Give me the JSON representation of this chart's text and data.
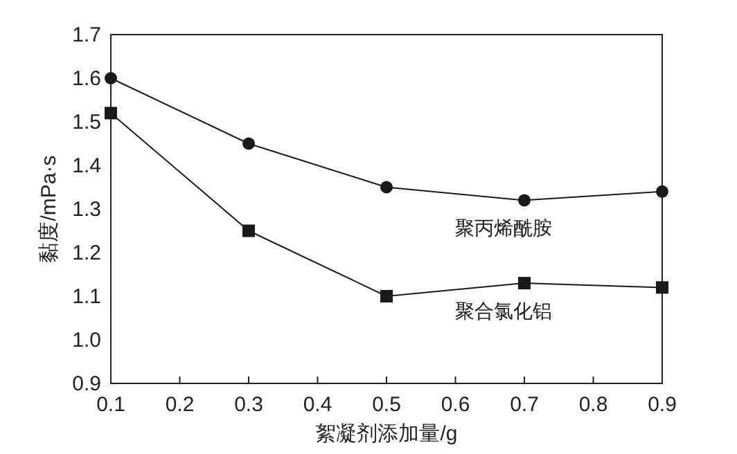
{
  "chart_data": {
    "type": "line",
    "xlabel": "絮凝剂添加量/g",
    "ylabel": "黏度/mPa·s",
    "x": [
      0.1,
      0.3,
      0.5,
      0.7,
      0.9
    ],
    "xlim": [
      0.1,
      0.9
    ],
    "xticks": [
      0.1,
      0.2,
      0.3,
      0.4,
      0.5,
      0.6,
      0.7,
      0.8,
      0.9
    ],
    "ylim": [
      0.9,
      1.7
    ],
    "yticks": [
      0.9,
      {
        "value": 1.0,
        "label": "1.0"
      },
      1.1,
      1.2,
      1.3,
      1.4,
      1.5,
      1.6,
      1.7
    ],
    "grid": false,
    "line_style": "solid",
    "series": [
      {
        "name": "聚丙烯酰胺",
        "color": "#1a1a1a",
        "marker": "circle",
        "values": [
          1.6,
          1.45,
          1.35,
          1.32,
          1.34
        ]
      },
      {
        "name": "聚合氯化铝",
        "color": "#1a1a1a",
        "marker": "square",
        "values": [
          1.52,
          1.25,
          1.1,
          1.13,
          1.12
        ]
      }
    ]
  }
}
